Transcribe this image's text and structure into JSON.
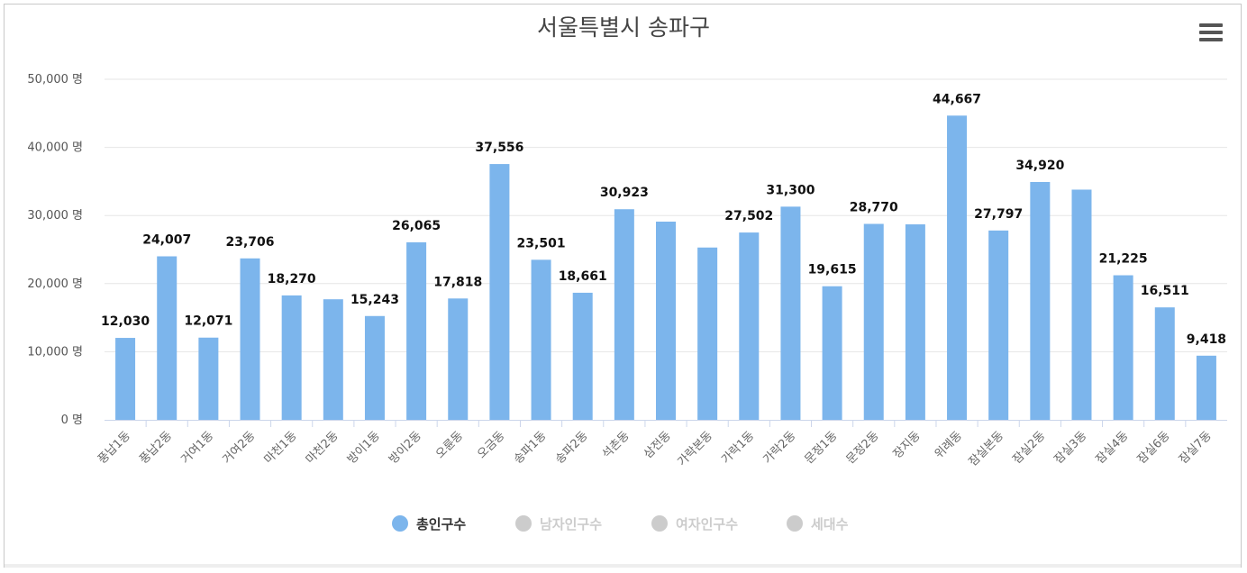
{
  "chart_data": {
    "type": "bar",
    "title": "서울특별시 송파구",
    "xlabel": "",
    "ylabel": "",
    "ylim": [
      0,
      50000
    ],
    "y_ticks": [
      0,
      10000,
      20000,
      30000,
      40000,
      50000
    ],
    "y_tick_labels": [
      "0 명",
      "10,000 명",
      "20,000 명",
      "30,000 명",
      "40,000 명",
      "50,000 명"
    ],
    "grid": true,
    "categories": [
      "풍납1동",
      "풍납2동",
      "거여1동",
      "거여2동",
      "마천1동",
      "마천2동",
      "방이1동",
      "방이2동",
      "오륜동",
      "오금동",
      "송파1동",
      "송파2동",
      "석촌동",
      "삼전동",
      "가락본동",
      "가락1동",
      "가락2동",
      "문정1동",
      "문정2동",
      "장지동",
      "위례동",
      "잠실본동",
      "잠실2동",
      "잠실3동",
      "잠실4동",
      "잠실6동",
      "잠실7동"
    ],
    "series": [
      {
        "name": "총인구수",
        "color": "#7cb5ec",
        "values": [
          12030,
          24007,
          12071,
          23706,
          18270,
          17700,
          15243,
          26065,
          17818,
          37556,
          23501,
          18661,
          30923,
          29100,
          25300,
          27502,
          31300,
          19615,
          28770,
          28700,
          44667,
          27797,
          34920,
          33800,
          21225,
          16511,
          9418
        ],
        "data_labels": [
          "12,030",
          "24,007",
          "12,071",
          "23,706",
          "18,270",
          "",
          "15,243",
          "26,065",
          "17,818",
          "37,556",
          "23,501",
          "18,661",
          "30,923",
          "",
          "",
          "27,502",
          "31,300",
          "19,615",
          "28,770",
          "",
          "44,667",
          "27,797",
          "34,920",
          "",
          "21,225",
          "16,511",
          "9,418"
        ]
      }
    ],
    "legend": {
      "position": "bottom",
      "items": [
        {
          "name": "총인구수",
          "active": true,
          "color": "#7cb5ec"
        },
        {
          "name": "남자인구수",
          "active": false,
          "color": "#cccccc"
        },
        {
          "name": "여자인구수",
          "active": false,
          "color": "#cccccc"
        },
        {
          "name": "세대수",
          "active": false,
          "color": "#cccccc"
        }
      ]
    }
  },
  "menu": {
    "icon": "hamburger-menu-icon"
  }
}
